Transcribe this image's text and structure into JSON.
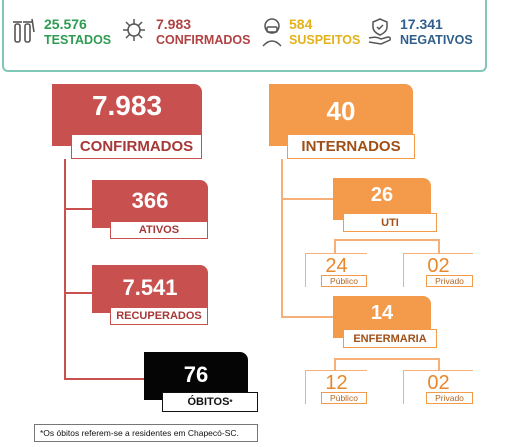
{
  "stats": {
    "testados": {
      "value": "25.576",
      "label": "TESTADOS",
      "icon": "test-tube-icon",
      "color": "#2e9b52"
    },
    "confirmados": {
      "value": "7.983",
      "label": "CONFIRMADOS",
      "icon": "virus-icon",
      "color": "#b04243"
    },
    "suspeitos": {
      "value": "584",
      "label": "SUSPEITOS",
      "icon": "masked-person-icon",
      "color": "#e3b21a"
    },
    "negativos": {
      "value": "17.341",
      "label": "NEGATIVOS",
      "icon": "hand-shield-icon",
      "color": "#2f5f8a"
    }
  },
  "confirmados_tree": {
    "total": {
      "value": "7.983",
      "label": "CONFIRMADOS"
    },
    "ativos": {
      "value": "366",
      "label": "ATIVOS"
    },
    "recuperados": {
      "value": "7.541",
      "label": "RECUPERADOS"
    },
    "obitos": {
      "value": "76",
      "label": "ÓBITOS",
      "marker": "*"
    }
  },
  "internados_tree": {
    "total": {
      "value": "40",
      "label": "INTERNADOS"
    },
    "uti": {
      "value": "26",
      "label": "UTI",
      "publico": "24",
      "privado": "02"
    },
    "enfermaria": {
      "value": "14",
      "label": "ENFERMARIA",
      "publico": "12",
      "privado": "02"
    },
    "publico_label": "Público",
    "privado_label": "Privado"
  },
  "footnote": "*Os óbitos referem-se a residentes em Chapecó-SC.",
  "colors": {
    "red": "#c8504f",
    "orange": "#f39a4b",
    "black": "#050505",
    "border": "#7fc7b7"
  }
}
